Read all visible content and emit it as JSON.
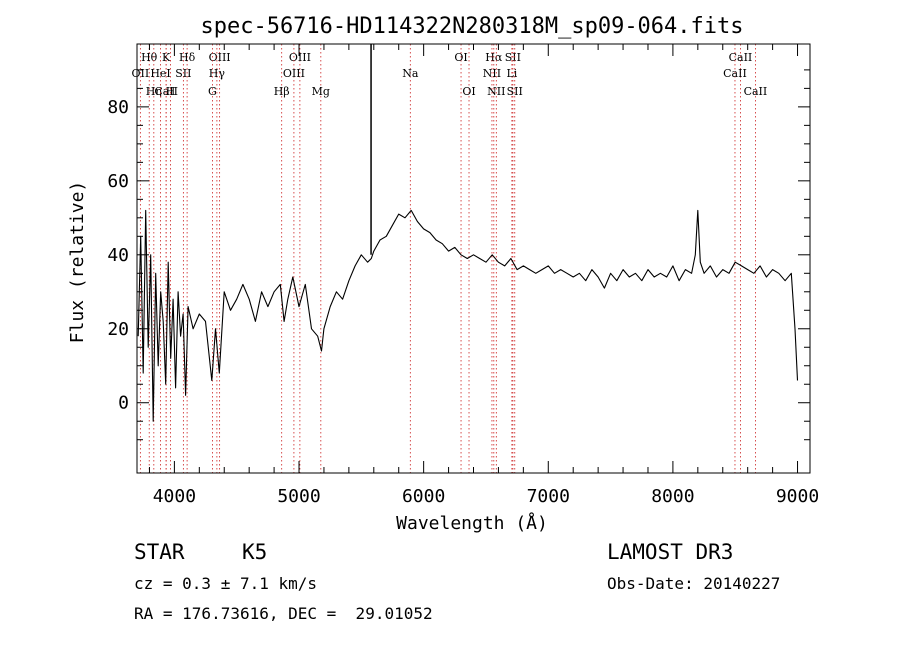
{
  "chart_data": {
    "type": "line",
    "title": "spec-56716-HD114322N280318M_sp09-064.fits",
    "xlabel": "Wavelength (Å)",
    "ylabel": "Flux (relative)",
    "xlim": [
      3700,
      9100
    ],
    "ylim": [
      -19,
      97
    ],
    "x_ticks": [
      4000,
      5000,
      6000,
      7000,
      8000,
      9000
    ],
    "y_ticks": [
      0,
      20,
      40,
      60,
      80
    ],
    "x_tick_labels": [
      "4000",
      "5000",
      "6000",
      "7000",
      "8000",
      "9000"
    ],
    "y_tick_labels": [
      "0",
      "20",
      "40",
      "60",
      "80"
    ],
    "series": [
      {
        "name": "flux",
        "x": [
          3710,
          3730,
          3750,
          3770,
          3790,
          3810,
          3830,
          3850,
          3870,
          3890,
          3910,
          3930,
          3950,
          3970,
          3990,
          4010,
          4030,
          4050,
          4070,
          4090,
          4110,
          4150,
          4200,
          4250,
          4300,
          4330,
          4360,
          4400,
          4450,
          4500,
          4550,
          4600,
          4650,
          4700,
          4750,
          4800,
          4850,
          4880,
          4910,
          4950,
          5000,
          5050,
          5100,
          5150,
          5180,
          5200,
          5250,
          5300,
          5350,
          5400,
          5450,
          5500,
          5550,
          5580,
          5600,
          5650,
          5700,
          5750,
          5800,
          5850,
          5900,
          5950,
          6000,
          6050,
          6100,
          6150,
          6200,
          6250,
          6300,
          6350,
          6400,
          6450,
          6500,
          6550,
          6600,
          6650,
          6700,
          6750,
          6800,
          6850,
          6900,
          6950,
          7000,
          7050,
          7100,
          7150,
          7200,
          7250,
          7300,
          7350,
          7400,
          7450,
          7500,
          7550,
          7600,
          7650,
          7700,
          7750,
          7800,
          7850,
          7900,
          7950,
          8000,
          8050,
          8100,
          8150,
          8180,
          8200,
          8220,
          8250,
          8300,
          8350,
          8400,
          8450,
          8500,
          8550,
          8600,
          8650,
          8700,
          8750,
          8800,
          8850,
          8900,
          8950,
          8980,
          9000
        ],
        "y": [
          18,
          45,
          8,
          52,
          15,
          40,
          -5,
          35,
          10,
          30,
          22,
          5,
          38,
          12,
          28,
          4,
          30,
          18,
          24,
          2,
          26,
          20,
          24,
          22,
          6,
          20,
          8,
          30,
          25,
          28,
          32,
          28,
          22,
          30,
          26,
          30,
          32,
          22,
          28,
          34,
          26,
          32,
          20,
          18,
          14,
          20,
          26,
          30,
          28,
          33,
          37,
          40,
          38,
          39,
          41,
          44,
          45,
          48,
          51,
          50,
          52,
          49,
          47,
          46,
          44,
          43,
          41,
          42,
          40,
          39,
          40,
          39,
          38,
          40,
          38,
          37,
          39,
          36,
          37,
          36,
          35,
          36,
          37,
          35,
          36,
          35,
          34,
          35,
          33,
          36,
          34,
          31,
          35,
          33,
          36,
          34,
          35,
          33,
          36,
          34,
          35,
          34,
          37,
          33,
          36,
          35,
          40,
          52,
          38,
          35,
          37,
          34,
          36,
          35,
          38,
          37,
          36,
          35,
          37,
          34,
          36,
          35,
          33,
          35,
          20,
          6
        ]
      }
    ],
    "spike": {
      "x": 5578,
      "y_from": 40,
      "y_to": 97
    },
    "lines": [
      {
        "label": "Hθ",
        "x": 3798,
        "row": 1
      },
      {
        "label": "OII",
        "x": 3727,
        "row": 2
      },
      {
        "label": "CaII",
        "x": 3934,
        "row": 3
      },
      {
        "label": "Hη",
        "x": 3835,
        "row": 3
      },
      {
        "label": "K",
        "x": 3934,
        "row": 1
      },
      {
        "label": "HeI",
        "x": 3889,
        "row": 2
      },
      {
        "label": "H",
        "x": 3969,
        "row": 3
      },
      {
        "label": "SII",
        "x": 4072,
        "row": 2
      },
      {
        "label": "Hδ",
        "x": 4102,
        "row": 1
      },
      {
        "label": "OIII",
        "x": 4363,
        "row": 1
      },
      {
        "label": "Hγ",
        "x": 4341,
        "row": 2
      },
      {
        "label": "G",
        "x": 4305,
        "row": 3
      },
      {
        "label": "Hβ",
        "x": 4861,
        "row": 3
      },
      {
        "label": "OIII",
        "x": 5007,
        "row": 1
      },
      {
        "label": "OIII",
        "x": 4959,
        "row": 2
      },
      {
        "label": "Mg",
        "x": 5175,
        "row": 3
      },
      {
        "label": "Na",
        "x": 5893,
        "row": 2
      },
      {
        "label": "OI",
        "x": 6300,
        "row": 1
      },
      {
        "label": "OI",
        "x": 6364,
        "row": 3
      },
      {
        "label": "Hα",
        "x": 6563,
        "row": 1
      },
      {
        "label": "NII",
        "x": 6548,
        "row": 2
      },
      {
        "label": "NII",
        "x": 6583,
        "row": 3
      },
      {
        "label": "SII",
        "x": 6716,
        "row": 1
      },
      {
        "label": "Li",
        "x": 6708,
        "row": 2
      },
      {
        "label": "SII",
        "x": 6731,
        "row": 3
      },
      {
        "label": "CaII",
        "x": 8542,
        "row": 1
      },
      {
        "label": "CaII",
        "x": 8498,
        "row": 2
      },
      {
        "label": "CaII",
        "x": 8662,
        "row": 3
      }
    ]
  },
  "footer": {
    "class_label": "STAR",
    "subclass": "K5",
    "survey": "LAMOST DR3",
    "cz": "cz = 0.3 ± 7.1 km/s",
    "obs_date": "Obs-Date: 20140227",
    "coords": "RA = 176.73616, DEC =  29.01052"
  },
  "colors": {
    "spectrum": "#000000",
    "line_markers": "#cc2222",
    "axes": "#000000"
  }
}
